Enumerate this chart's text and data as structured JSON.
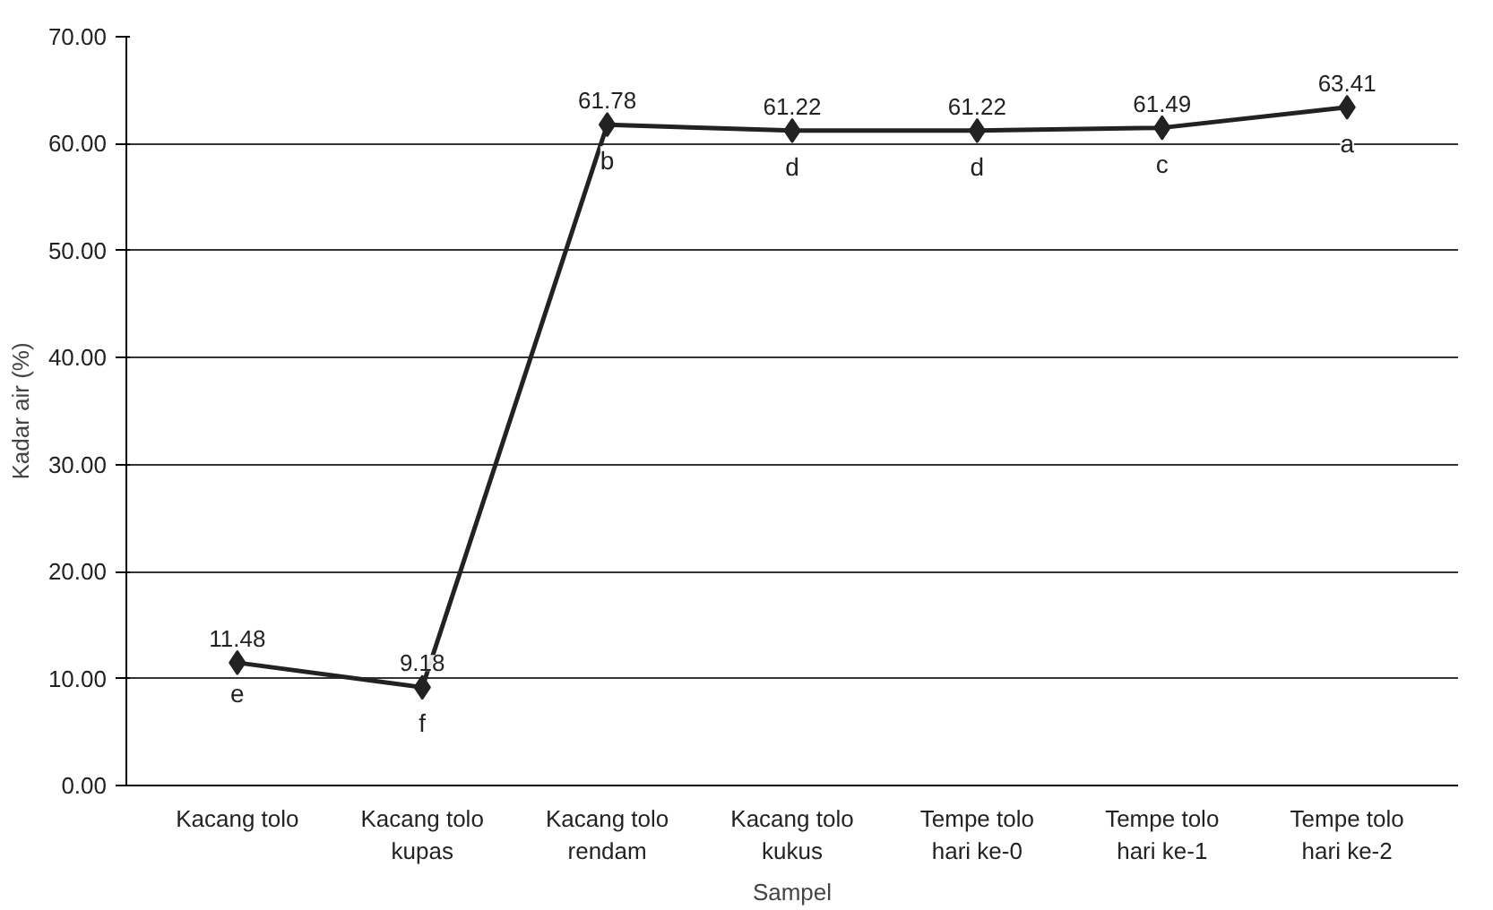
{
  "chart_data": {
    "type": "line",
    "xlabel": "Sampel",
    "ylabel": "Kadar air (%)",
    "categories": [
      "Kacang tolo",
      "Kacang tolo\nkupas",
      "Kacang tolo\nrendam",
      "Kacang tolo\nkukus",
      "Tempe tolo\nhari ke-0",
      "Tempe tolo\nhari ke-1",
      "Tempe tolo\nhari ke-2"
    ],
    "series": [
      {
        "color": "#222222",
        "values": [
          11.48,
          9.18,
          61.78,
          61.22,
          61.22,
          61.49,
          63.41
        ]
      }
    ],
    "ylim": [
      0,
      70
    ],
    "yticks": [
      {
        "value": 0,
        "label": "0.00"
      },
      {
        "value": 10,
        "label": "10.00"
      },
      {
        "value": 20,
        "label": "20.00"
      },
      {
        "value": 30,
        "label": "30.00"
      },
      {
        "value": 40,
        "label": "40.00"
      },
      {
        "value": 50,
        "label": "50.00"
      },
      {
        "value": 60,
        "label": "60.00"
      },
      {
        "value": 70,
        "label": "70.00"
      }
    ],
    "grid": "y",
    "marker": "diamond",
    "line_style": "solid",
    "data_labels": true,
    "annotations": [
      {
        "text": "e",
        "x": "Kacang tolo",
        "y": 11.48
      },
      {
        "text": "f",
        "x": "Kacang tolo\nkupas",
        "y": 9.18
      },
      {
        "text": "b",
        "x": "Kacang tolo\nrendam",
        "y": 61.78
      },
      {
        "text": "d",
        "x": "Kacang tolo\nkukus",
        "y": 61.22
      },
      {
        "text": "d",
        "x": "Tempe tolo\nhari ke-0",
        "y": 61.22
      },
      {
        "text": "c",
        "x": "Tempe tolo\nhari ke-1",
        "y": 61.49
      },
      {
        "text": "a",
        "x": "Tempe tolo\nhari ke-2",
        "y": 63.41
      }
    ]
  }
}
